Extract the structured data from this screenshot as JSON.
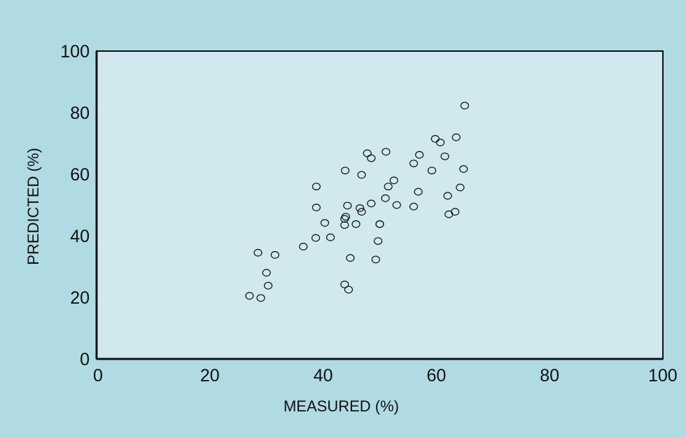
{
  "colors": {
    "page_background": "#b0dbe2",
    "plot_background": "#d0e8ee",
    "axis": "#111111",
    "marker_stroke": "#111111"
  },
  "chart_data": {
    "type": "scatter",
    "title": "",
    "xlabel": "MEASURED (%)",
    "ylabel": "PREDICTED (%)",
    "xlim": [
      0,
      100
    ],
    "ylim": [
      0,
      100
    ],
    "xticks": [
      "0",
      "20",
      "40",
      "60",
      "80",
      "100"
    ],
    "yticks": [
      "0",
      "20",
      "40",
      "60",
      "80",
      "100"
    ],
    "grid": false,
    "legend": "none",
    "marker": "open-circle",
    "series": [
      {
        "points": [
          [
            27.0,
            20.5
          ],
          [
            29.0,
            19.8
          ],
          [
            28.5,
            34.5
          ],
          [
            30.0,
            28.0
          ],
          [
            30.3,
            23.8
          ],
          [
            31.5,
            33.8
          ],
          [
            36.5,
            36.5
          ],
          [
            38.7,
            39.3
          ],
          [
            38.8,
            56.0
          ],
          [
            38.8,
            49.2
          ],
          [
            40.3,
            44.2
          ],
          [
            41.3,
            39.5
          ],
          [
            43.8,
            24.2
          ],
          [
            44.5,
            22.5
          ],
          [
            44.8,
            32.8
          ],
          [
            43.8,
            43.5
          ],
          [
            43.8,
            45.5
          ],
          [
            44.0,
            46.2
          ],
          [
            44.3,
            49.8
          ],
          [
            43.9,
            61.2
          ],
          [
            45.8,
            43.8
          ],
          [
            46.5,
            49.0
          ],
          [
            46.8,
            47.8
          ],
          [
            46.8,
            59.8
          ],
          [
            47.8,
            66.8
          ],
          [
            48.5,
            65.2
          ],
          [
            48.5,
            50.5
          ],
          [
            49.3,
            32.3
          ],
          [
            49.7,
            38.3
          ],
          [
            50.0,
            43.8
          ],
          [
            50.0,
            43.8
          ],
          [
            51.0,
            52.2
          ],
          [
            51.1,
            67.3
          ],
          [
            51.5,
            56.0
          ],
          [
            52.5,
            58.0
          ],
          [
            53.0,
            50.0
          ],
          [
            56.0,
            49.5
          ],
          [
            56.0,
            63.5
          ],
          [
            56.8,
            54.3
          ],
          [
            57.0,
            66.3
          ],
          [
            59.2,
            61.2
          ],
          [
            59.8,
            71.5
          ],
          [
            60.7,
            70.3
          ],
          [
            61.5,
            65.8
          ],
          [
            62.0,
            53.0
          ],
          [
            62.2,
            47.0
          ],
          [
            63.3,
            47.8
          ],
          [
            63.5,
            72.0
          ],
          [
            64.2,
            55.7
          ],
          [
            64.8,
            61.7
          ],
          [
            65.0,
            82.3
          ]
        ]
      }
    ]
  }
}
